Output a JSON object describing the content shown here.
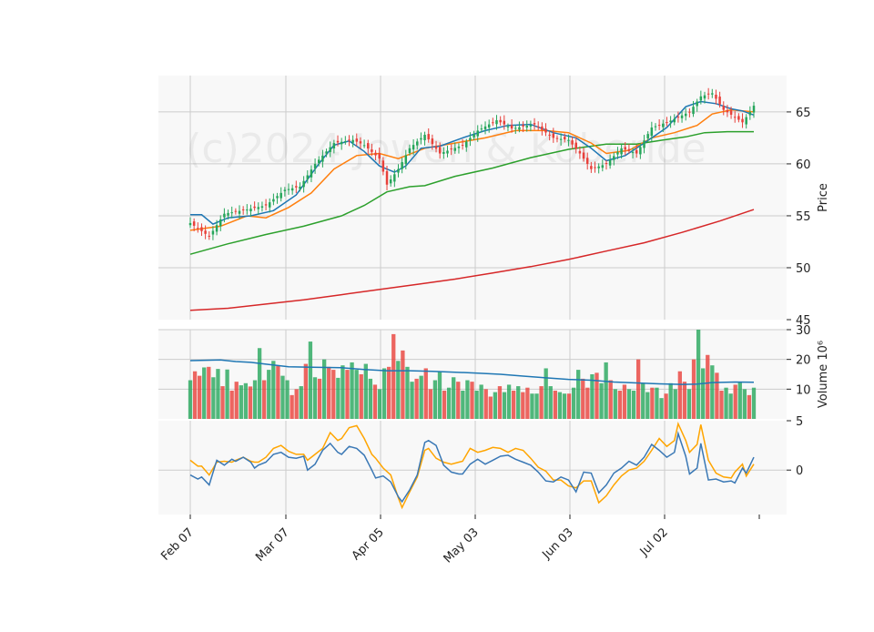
{
  "chart_data": {
    "type": "candlestick",
    "watermark": "(c)2024 Jowen & Koberide",
    "colors": {
      "up": "#26a65b",
      "down": "#e8403a",
      "ma_short": "#1f77b4",
      "ma_mid": "#ff7f0e",
      "ma_long": "#2ca02c",
      "ma_longest": "#d62728",
      "volume_ma": "#1f77b4",
      "osc_a": "#3a78b5",
      "osc_b": "#ffa500",
      "panel_bg": "#f8f8f8",
      "grid": "#cccccc"
    },
    "x_axis": {
      "tick_labels": [
        "Feb 07",
        "Mar 07",
        "Apr 05",
        "May 03",
        "Jun 03",
        "Jul 02"
      ]
    },
    "price_panel": {
      "ylabel": "Price",
      "ylim": [
        45,
        68.5
      ],
      "ticks": [
        45,
        50,
        55,
        60,
        65
      ],
      "close_points": [
        [
          0,
          54.3
        ],
        [
          5,
          53.0
        ],
        [
          9,
          55.2
        ],
        [
          15,
          55.6
        ],
        [
          20,
          56.0
        ],
        [
          25,
          57.5
        ],
        [
          29,
          57.8
        ],
        [
          33,
          60.0
        ],
        [
          38,
          62.0
        ],
        [
          43,
          62.3
        ],
        [
          46,
          61.8
        ],
        [
          50,
          60.5
        ],
        [
          52,
          58.0
        ],
        [
          55,
          59.5
        ],
        [
          58,
          61.5
        ],
        [
          62,
          62.8
        ],
        [
          66,
          61.0
        ],
        [
          72,
          61.8
        ],
        [
          76,
          63.2
        ],
        [
          81,
          64.2
        ],
        [
          85,
          63.4
        ],
        [
          91,
          63.8
        ],
        [
          96,
          62.5
        ],
        [
          100,
          62.3
        ],
        [
          103,
          61.0
        ],
        [
          106,
          59.5
        ],
        [
          110,
          60.0
        ],
        [
          114,
          61.5
        ],
        [
          118,
          61.0
        ],
        [
          122,
          63.5
        ],
        [
          126,
          64.0
        ],
        [
          129,
          64.5
        ],
        [
          132,
          65.0
        ],
        [
          135,
          66.5
        ],
        [
          138,
          66.8
        ],
        [
          141,
          65.2
        ],
        [
          144,
          64.5
        ],
        [
          146,
          64.0
        ],
        [
          148,
          65.0
        ],
        [
          149,
          65.6
        ]
      ],
      "ma_short_points": [
        [
          0,
          55.1
        ],
        [
          3,
          55.1
        ],
        [
          6,
          54.2
        ],
        [
          10,
          54.8
        ],
        [
          16,
          55.0
        ],
        [
          22,
          55.5
        ],
        [
          28,
          57.0
        ],
        [
          34,
          60.0
        ],
        [
          38,
          61.8
        ],
        [
          42,
          62.2
        ],
        [
          46,
          61.2
        ],
        [
          50,
          59.8
        ],
        [
          54,
          59.2
        ],
        [
          57,
          59.8
        ],
        [
          61,
          61.5
        ],
        [
          66,
          61.7
        ],
        [
          72,
          62.5
        ],
        [
          78,
          63.2
        ],
        [
          84,
          63.7
        ],
        [
          90,
          63.8
        ],
        [
          96,
          63.0
        ],
        [
          102,
          62.5
        ],
        [
          106,
          61.5
        ],
        [
          110,
          60.3
        ],
        [
          115,
          60.8
        ],
        [
          120,
          62.0
        ],
        [
          126,
          63.5
        ],
        [
          131,
          65.5
        ],
        [
          135,
          66.0
        ],
        [
          139,
          65.8
        ],
        [
          143,
          65.3
        ],
        [
          146,
          65.1
        ],
        [
          149,
          64.7
        ]
      ],
      "ma_mid_points": [
        [
          0,
          53.6
        ],
        [
          8,
          54.0
        ],
        [
          15,
          55.0
        ],
        [
          20,
          54.8
        ],
        [
          26,
          55.8
        ],
        [
          32,
          57.2
        ],
        [
          38,
          59.5
        ],
        [
          44,
          60.8
        ],
        [
          50,
          61.0
        ],
        [
          55,
          60.5
        ],
        [
          62,
          61.5
        ],
        [
          70,
          62.0
        ],
        [
          78,
          62.5
        ],
        [
          86,
          63.2
        ],
        [
          94,
          63.2
        ],
        [
          100,
          63.0
        ],
        [
          106,
          62.0
        ],
        [
          110,
          61.0
        ],
        [
          116,
          61.3
        ],
        [
          122,
          62.5
        ],
        [
          128,
          63.0
        ],
        [
          134,
          63.7
        ],
        [
          138,
          64.8
        ],
        [
          143,
          65.2
        ],
        [
          146,
          65.1
        ],
        [
          149,
          65.0
        ]
      ],
      "ma_long_points": [
        [
          0,
          51.3
        ],
        [
          10,
          52.3
        ],
        [
          20,
          53.2
        ],
        [
          30,
          54.0
        ],
        [
          40,
          55.0
        ],
        [
          46,
          56.0
        ],
        [
          52,
          57.3
        ],
        [
          58,
          57.8
        ],
        [
          62,
          57.9
        ],
        [
          70,
          58.8
        ],
        [
          80,
          59.6
        ],
        [
          90,
          60.6
        ],
        [
          100,
          61.4
        ],
        [
          110,
          61.9
        ],
        [
          118,
          61.9
        ],
        [
          125,
          62.3
        ],
        [
          131,
          62.6
        ],
        [
          136,
          63.0
        ],
        [
          142,
          63.1
        ],
        [
          149,
          63.1
        ]
      ],
      "ma_longest_points": [
        [
          0,
          45.9
        ],
        [
          10,
          46.1
        ],
        [
          20,
          46.5
        ],
        [
          30,
          46.9
        ],
        [
          40,
          47.4
        ],
        [
          50,
          47.9
        ],
        [
          60,
          48.4
        ],
        [
          70,
          48.9
        ],
        [
          80,
          49.5
        ],
        [
          90,
          50.1
        ],
        [
          100,
          50.8
        ],
        [
          110,
          51.6
        ],
        [
          120,
          52.4
        ],
        [
          130,
          53.4
        ],
        [
          140,
          54.5
        ],
        [
          149,
          55.6
        ]
      ]
    },
    "volume_panel": {
      "ylabel": "Volume  10⁶",
      "ylim": [
        0,
        30
      ],
      "ticks": [
        10,
        20,
        30
      ],
      "bars": [
        13.0,
        16.0,
        14.5,
        17.3,
        17.5,
        14.0,
        16.8,
        11.0,
        16.6,
        9.5,
        12.5,
        11.3,
        12.0,
        10.9,
        13.0,
        23.8,
        13.0,
        16.5,
        19.5,
        17.8,
        14.5,
        13.0,
        8.0,
        10.0,
        11.0,
        18.5,
        26.0,
        14.0,
        13.5,
        20.0,
        17.5,
        16.5,
        13.8,
        18.0,
        16.5,
        19.0,
        16.5,
        15.0,
        18.5,
        13.5,
        11.5,
        10.0,
        17.0,
        17.5,
        28.5,
        19.5,
        23.0,
        17.5,
        12.5,
        13.5,
        14.5,
        17.0,
        10.0,
        13.0,
        16.0,
        9.5,
        10.5,
        14.0,
        12.5,
        9.5,
        13.0,
        12.5,
        9.5,
        11.5,
        10.0,
        7.5,
        9.0,
        11.0,
        9.0,
        11.5,
        9.5,
        11.0,
        9.0,
        10.5,
        8.5,
        8.5,
        11.0,
        17.0,
        11.0,
        9.5,
        9.0,
        8.5,
        8.5,
        10.5,
        16.5,
        13.5,
        10.5,
        15.0,
        15.5,
        12.0,
        19.0,
        13.0,
        10.0,
        9.5,
        11.5,
        10.0,
        9.5,
        20.0,
        12.0,
        9.0,
        10.5,
        10.5,
        7.0,
        8.5,
        12.0,
        10.0,
        16.0,
        12.5,
        10.0,
        20.0,
        30.0,
        17.0,
        21.5,
        18.0,
        15.5,
        9.5,
        10.5,
        8.5,
        11.5,
        12.5,
        10.0,
        8.0,
        10.5
      ],
      "ma_points": [
        [
          0,
          19.6
        ],
        [
          4,
          19.7
        ],
        [
          8,
          19.8
        ],
        [
          12,
          19.3
        ],
        [
          16,
          19.0
        ],
        [
          20,
          18.4
        ],
        [
          26,
          17.5
        ],
        [
          32,
          17.4
        ],
        [
          40,
          17.2
        ],
        [
          46,
          16.6
        ],
        [
          52,
          16.2
        ],
        [
          58,
          16.2
        ],
        [
          64,
          16.0
        ],
        [
          70,
          15.7
        ],
        [
          76,
          15.4
        ],
        [
          82,
          15.0
        ],
        [
          88,
          14.4
        ],
        [
          94,
          13.8
        ],
        [
          100,
          13.3
        ],
        [
          106,
          13.0
        ],
        [
          112,
          12.4
        ],
        [
          118,
          12.1
        ],
        [
          124,
          11.8
        ],
        [
          130,
          11.6
        ],
        [
          134,
          11.7
        ],
        [
          138,
          12.2
        ],
        [
          144,
          12.4
        ],
        [
          149,
          12.3
        ]
      ]
    },
    "oscillator_panel": {
      "ylim": [
        -4.5,
        5
      ],
      "ticks": [
        0,
        5
      ],
      "series_a": [
        [
          0,
          -0.5
        ],
        [
          2,
          -0.9
        ],
        [
          3,
          -0.7
        ],
        [
          5,
          -1.5
        ],
        [
          7,
          1.0
        ],
        [
          9,
          0.5
        ],
        [
          11,
          1.1
        ],
        [
          12,
          0.9
        ],
        [
          14,
          1.3
        ],
        [
          16,
          0.8
        ],
        [
          17,
          0.2
        ],
        [
          18,
          0.5
        ],
        [
          20,
          0.8
        ],
        [
          22,
          1.6
        ],
        [
          24,
          1.8
        ],
        [
          26,
          1.3
        ],
        [
          28,
          1.2
        ],
        [
          30,
          1.4
        ],
        [
          31,
          0.0
        ],
        [
          33,
          0.6
        ],
        [
          35,
          2.0
        ],
        [
          37,
          2.7
        ],
        [
          39,
          1.8
        ],
        [
          40,
          1.6
        ],
        [
          42,
          2.4
        ],
        [
          44,
          2.2
        ],
        [
          46,
          1.5
        ],
        [
          48,
          0.0
        ],
        [
          49,
          -0.8
        ],
        [
          51,
          -0.6
        ],
        [
          53,
          -1.2
        ],
        [
          55,
          -2.7
        ],
        [
          56,
          -3.2
        ],
        [
          58,
          -2.0
        ],
        [
          60,
          -0.5
        ],
        [
          62,
          2.8
        ],
        [
          63,
          3.0
        ],
        [
          65,
          2.5
        ],
        [
          67,
          0.5
        ],
        [
          69,
          -0.2
        ],
        [
          71,
          -0.4
        ],
        [
          72,
          -0.4
        ],
        [
          74,
          0.6
        ],
        [
          76,
          1.1
        ],
        [
          78,
          0.6
        ],
        [
          80,
          1.0
        ],
        [
          82,
          1.4
        ],
        [
          84,
          1.5
        ],
        [
          86,
          1.1
        ],
        [
          88,
          0.8
        ],
        [
          90,
          0.5
        ],
        [
          92,
          -0.2
        ],
        [
          94,
          -1.1
        ],
        [
          96,
          -1.2
        ],
        [
          98,
          -0.7
        ],
        [
          100,
          -1.0
        ],
        [
          102,
          -2.2
        ],
        [
          104,
          -0.2
        ],
        [
          106,
          -0.3
        ],
        [
          108,
          -2.3
        ],
        [
          110,
          -1.5
        ],
        [
          112,
          -0.3
        ],
        [
          114,
          0.2
        ],
        [
          116,
          0.9
        ],
        [
          118,
          0.5
        ],
        [
          120,
          1.3
        ],
        [
          122,
          2.6
        ],
        [
          124,
          2.0
        ],
        [
          126,
          1.3
        ],
        [
          128,
          1.8
        ],
        [
          129,
          3.7
        ],
        [
          131,
          1.4
        ],
        [
          132,
          -0.4
        ],
        [
          134,
          0.2
        ],
        [
          135,
          2.7
        ],
        [
          137,
          -1.0
        ],
        [
          139,
          -0.9
        ],
        [
          141,
          -1.2
        ],
        [
          143,
          -1.1
        ],
        [
          144,
          -1.3
        ],
        [
          146,
          0.2
        ],
        [
          147,
          -0.3
        ],
        [
          149,
          1.3
        ]
      ],
      "series_b": [
        [
          0,
          1.0
        ],
        [
          2,
          0.4
        ],
        [
          3,
          0.4
        ],
        [
          5,
          -0.5
        ],
        [
          7,
          0.8
        ],
        [
          9,
          0.9
        ],
        [
          11,
          0.8
        ],
        [
          12,
          1.0
        ],
        [
          14,
          1.3
        ],
        [
          16,
          0.9
        ],
        [
          17,
          0.8
        ],
        [
          18,
          0.8
        ],
        [
          20,
          1.3
        ],
        [
          22,
          2.2
        ],
        [
          24,
          2.5
        ],
        [
          26,
          1.9
        ],
        [
          28,
          1.6
        ],
        [
          30,
          1.6
        ],
        [
          31,
          1.0
        ],
        [
          33,
          1.6
        ],
        [
          35,
          2.2
        ],
        [
          37,
          3.8
        ],
        [
          39,
          3.0
        ],
        [
          40,
          3.2
        ],
        [
          42,
          4.3
        ],
        [
          44,
          4.5
        ],
        [
          46,
          3.2
        ],
        [
          48,
          1.6
        ],
        [
          49,
          1.2
        ],
        [
          51,
          0.2
        ],
        [
          53,
          -0.5
        ],
        [
          55,
          -2.8
        ],
        [
          56,
          -3.8
        ],
        [
          58,
          -2.2
        ],
        [
          60,
          -0.7
        ],
        [
          62,
          2.0
        ],
        [
          63,
          2.2
        ],
        [
          65,
          1.2
        ],
        [
          67,
          0.8
        ],
        [
          69,
          0.6
        ],
        [
          71,
          0.8
        ],
        [
          72,
          0.9
        ],
        [
          74,
          2.2
        ],
        [
          76,
          1.8
        ],
        [
          78,
          2.0
        ],
        [
          80,
          2.3
        ],
        [
          82,
          2.2
        ],
        [
          84,
          1.8
        ],
        [
          86,
          2.2
        ],
        [
          88,
          2.0
        ],
        [
          90,
          1.2
        ],
        [
          92,
          0.3
        ],
        [
          94,
          -0.1
        ],
        [
          96,
          -1.0
        ],
        [
          98,
          -1.0
        ],
        [
          100,
          -1.6
        ],
        [
          102,
          -1.8
        ],
        [
          104,
          -1.1
        ],
        [
          106,
          -1.1
        ],
        [
          108,
          -3.3
        ],
        [
          110,
          -2.6
        ],
        [
          112,
          -1.5
        ],
        [
          114,
          -0.6
        ],
        [
          116,
          0.0
        ],
        [
          118,
          0.2
        ],
        [
          120,
          0.9
        ],
        [
          122,
          2.0
        ],
        [
          124,
          3.2
        ],
        [
          126,
          2.4
        ],
        [
          128,
          3.0
        ],
        [
          129,
          4.7
        ],
        [
          131,
          3.0
        ],
        [
          132,
          1.8
        ],
        [
          134,
          2.6
        ],
        [
          135,
          4.6
        ],
        [
          137,
          1.0
        ],
        [
          139,
          -0.3
        ],
        [
          141,
          -0.7
        ],
        [
          143,
          -0.8
        ],
        [
          144,
          -0.2
        ],
        [
          146,
          0.6
        ],
        [
          147,
          -0.6
        ],
        [
          149,
          0.6
        ]
      ]
    }
  }
}
